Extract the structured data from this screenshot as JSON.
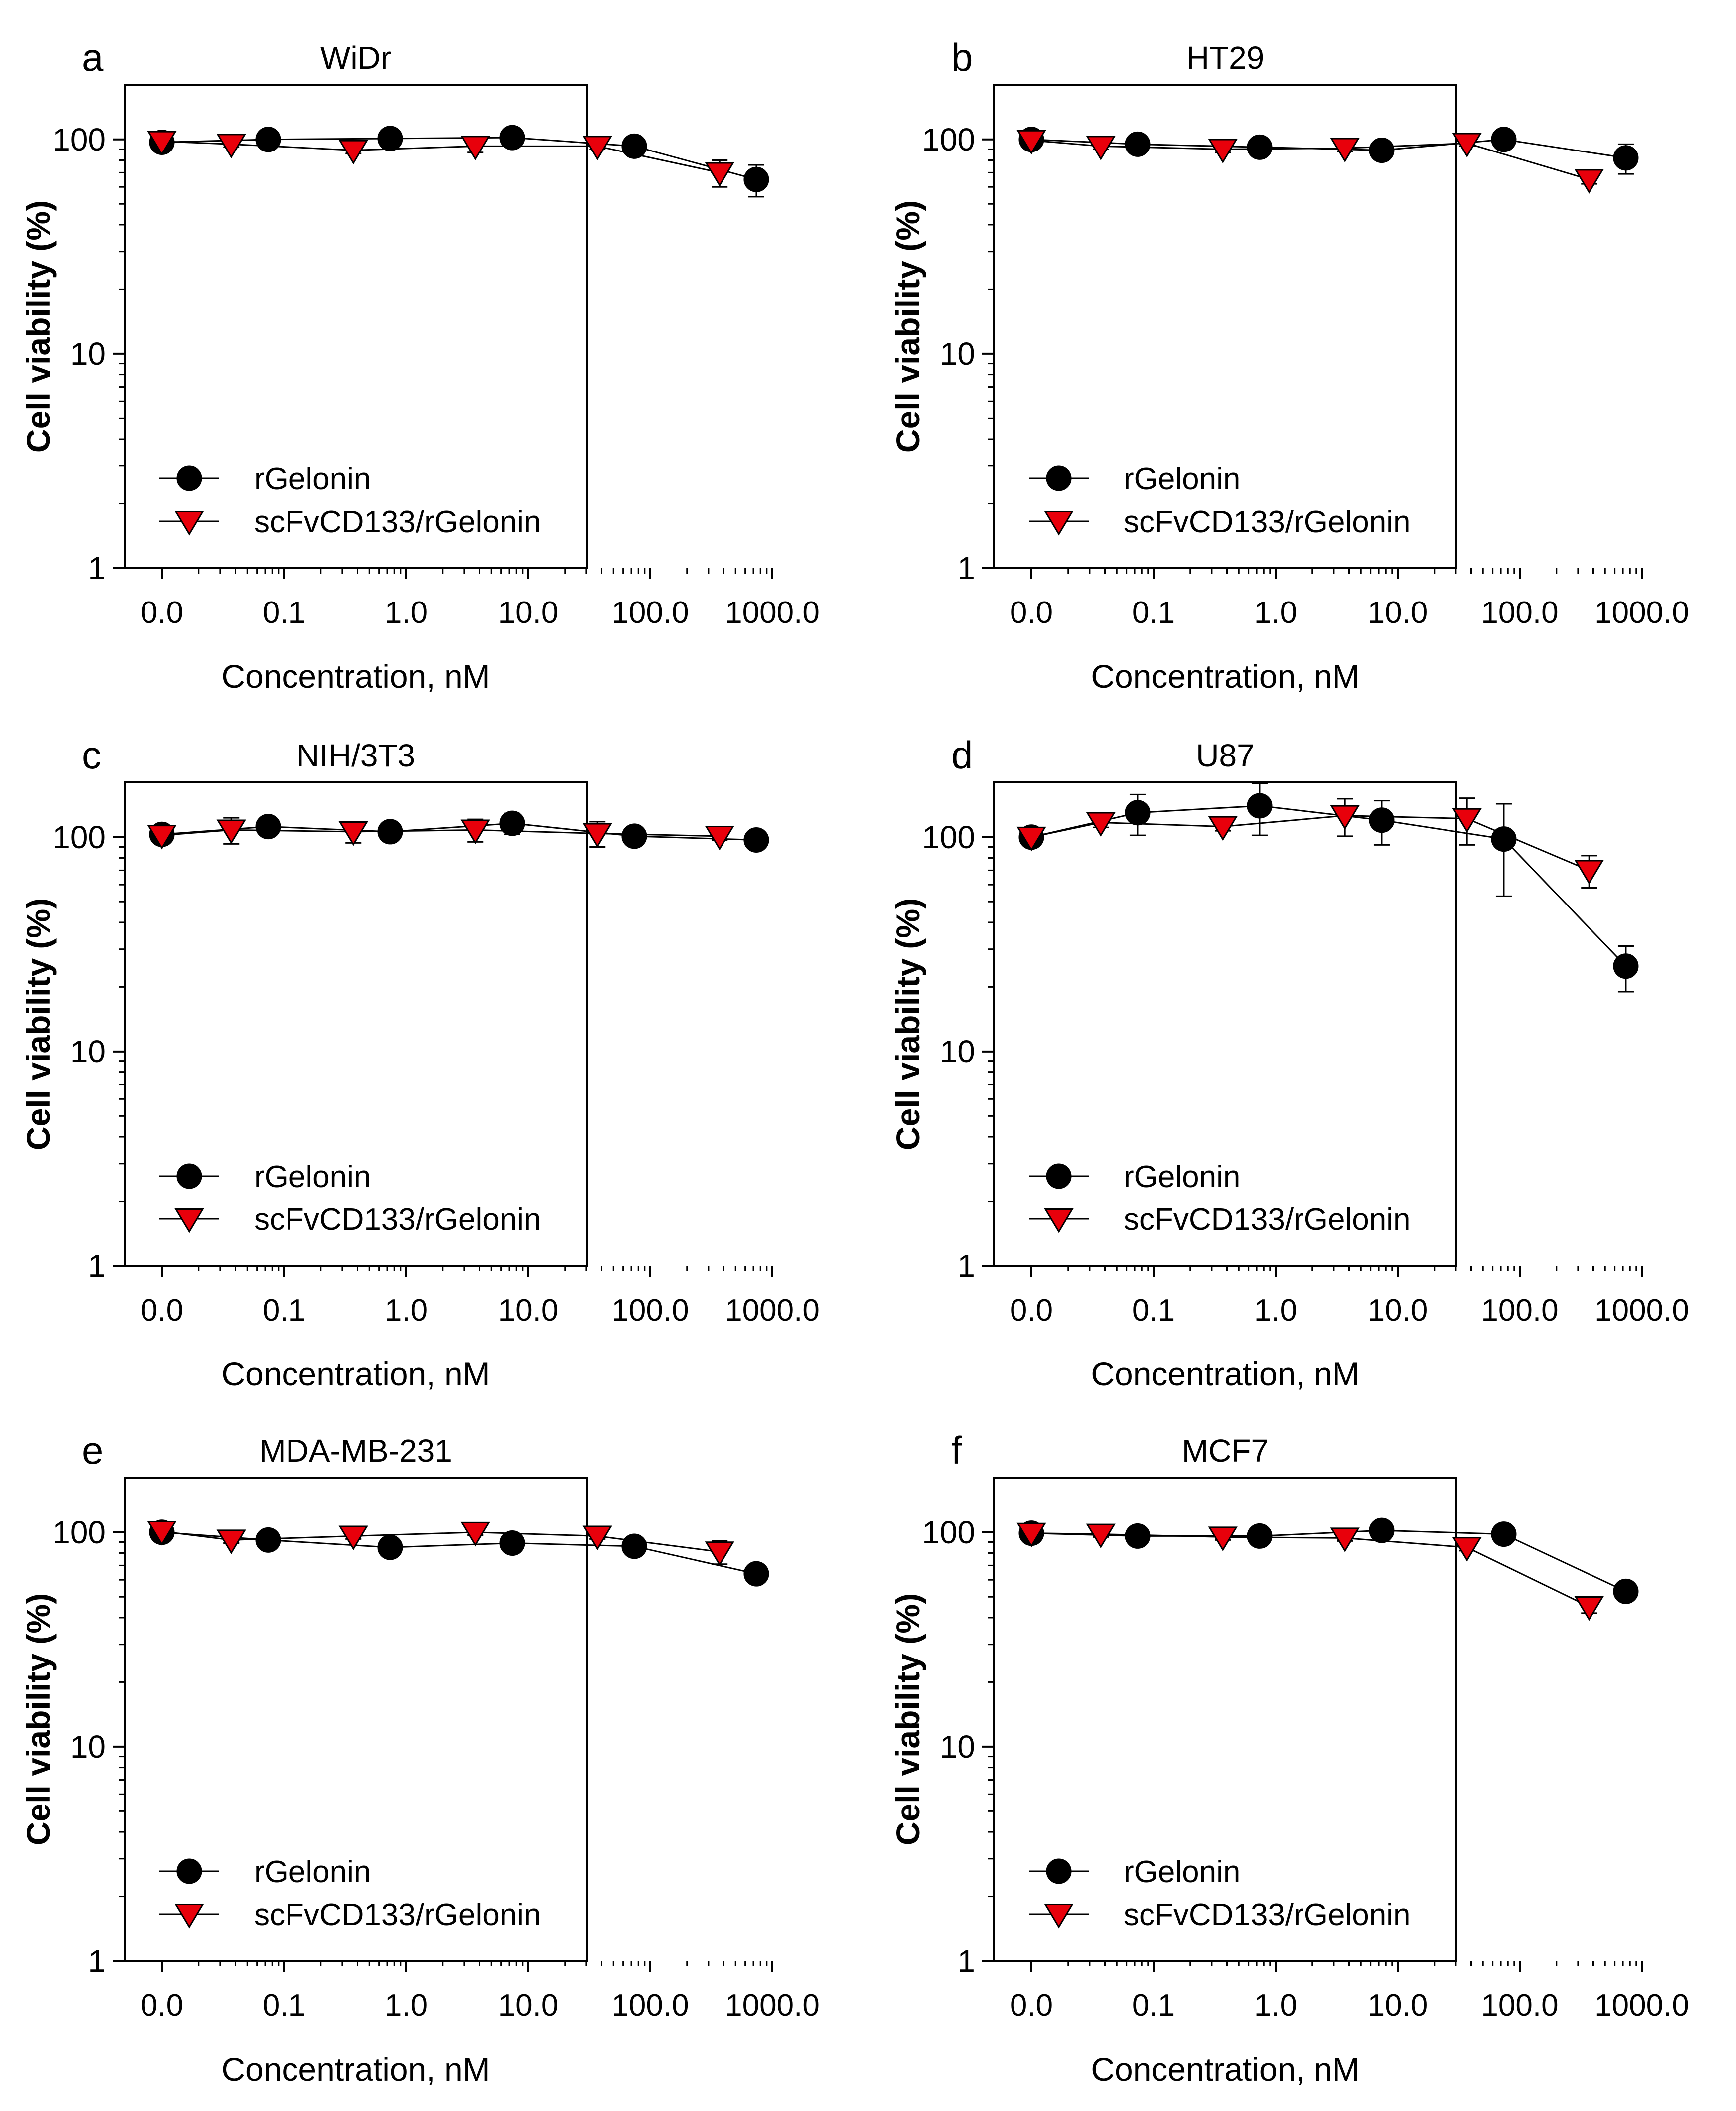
{
  "figure": {
    "series_names": [
      "rGelonin",
      "scFvCD133/rGelonin"
    ],
    "colors": {
      "rGelonin": "#000000",
      "scFvCD133/rGelonin": "#e8000b",
      "axis": "#000000"
    }
  },
  "chart_data": [
    {
      "type": "line",
      "panel_letter": "a",
      "title": "WiDr",
      "xlabel": "Concentration, nM",
      "ylabel": "Cell viability (%)",
      "xscale": "log",
      "yscale": "log",
      "x_tick_labels": [
        "0.0",
        "0.1",
        "1.0",
        "10.0",
        "100.0",
        "1000.0"
      ],
      "y_tick_labels": [
        "1",
        "10",
        "100"
      ],
      "ylim": [
        1,
        180
      ],
      "legend_position": "bottom-left",
      "series": [
        {
          "name": "rGelonin",
          "marker": "circle",
          "x": [
            0.01,
            0.074,
            0.74,
            7.4,
            74,
            740
          ],
          "y": [
            97,
            100,
            101,
            102,
            93,
            65
          ],
          "err": [
            5,
            3,
            3,
            3,
            3,
            11
          ]
        },
        {
          "name": "scFvCD133/rGelonin",
          "marker": "triangle-down",
          "x": [
            0.01,
            0.037,
            0.37,
            3.7,
            37,
            370
          ],
          "y": [
            98,
            95,
            89,
            93,
            93,
            70
          ],
          "err": [
            4,
            3,
            3,
            6,
            3,
            10
          ]
        }
      ]
    },
    {
      "type": "line",
      "panel_letter": "b",
      "title": "HT29",
      "xlabel": "Concentration, nM",
      "ylabel": "Cell viability (%)",
      "xscale": "log",
      "yscale": "log",
      "x_tick_labels": [
        "0.0",
        "0.1",
        "1.0",
        "10.0",
        "100.0",
        "1000.0"
      ],
      "y_tick_labels": [
        "1",
        "10",
        "100"
      ],
      "ylim": [
        1,
        180
      ],
      "legend_position": "bottom-left",
      "series": [
        {
          "name": "rGelonin",
          "marker": "circle",
          "x": [
            0.01,
            0.074,
            0.74,
            7.4,
            74,
            740
          ],
          "y": [
            100,
            95,
            92,
            89,
            100,
            82
          ],
          "err": [
            3,
            3,
            3,
            3,
            3,
            13
          ]
        },
        {
          "name": "scFvCD133/rGelonin",
          "marker": "triangle-down",
          "x": [
            0.01,
            0.037,
            0.37,
            3.7,
            37,
            370
          ],
          "y": [
            99,
            93,
            90,
            91,
            96,
            65
          ],
          "err": [
            3,
            3,
            3,
            3,
            3,
            3
          ]
        }
      ]
    },
    {
      "type": "line",
      "panel_letter": "c",
      "title": "NIH/3T3",
      "xlabel": "Concentration, nM",
      "ylabel": "Cell viability (%)",
      "xscale": "log",
      "yscale": "log",
      "x_tick_labels": [
        "0.0",
        "0.1",
        "1.0",
        "10.0",
        "100.0",
        "1000.0"
      ],
      "y_tick_labels": [
        "1",
        "10",
        "100"
      ],
      "ylim": [
        1,
        180
      ],
      "legend_position": "bottom-left",
      "series": [
        {
          "name": "rGelonin",
          "marker": "circle",
          "x": [
            0.01,
            0.074,
            0.74,
            7.4,
            74,
            740
          ],
          "y": [
            103,
            112,
            106,
            116,
            101,
            97
          ],
          "err": [
            4,
            6,
            4,
            13,
            4,
            3
          ]
        },
        {
          "name": "scFvCD133/rGelonin",
          "marker": "triangle-down",
          "x": [
            0.01,
            0.037,
            0.37,
            3.7,
            37,
            370
          ],
          "y": [
            102,
            108,
            106,
            108,
            104,
            101
          ],
          "err": [
            4,
            15,
            12,
            13,
            14,
            4
          ]
        }
      ]
    },
    {
      "type": "line",
      "panel_letter": "d",
      "title": "U87",
      "xlabel": "Concentration, nM",
      "ylabel": "Cell viability (%)",
      "xscale": "log",
      "yscale": "log",
      "x_tick_labels": [
        "0.0",
        "0.1",
        "1.0",
        "10.0",
        "100.0",
        "1000.0"
      ],
      "y_tick_labels": [
        "1",
        "10",
        "100"
      ],
      "ylim": [
        1,
        180
      ],
      "legend_position": "bottom-left",
      "series": [
        {
          "name": "rGelonin",
          "marker": "circle",
          "x": [
            0.01,
            0.074,
            0.74,
            7.4,
            74,
            740
          ],
          "y": [
            100,
            130,
            140,
            120,
            98,
            25
          ],
          "err": [
            4,
            28,
            38,
            28,
            45,
            6
          ]
        },
        {
          "name": "scFvCD133/rGelonin",
          "marker": "triangle-down",
          "x": [
            0.01,
            0.037,
            0.37,
            3.7,
            37,
            370
          ],
          "y": [
            100,
            117,
            112,
            126,
            122,
            70
          ],
          "err": [
            4,
            6,
            5,
            25,
            30,
            12
          ]
        }
      ]
    },
    {
      "type": "line",
      "panel_letter": "e",
      "title": "MDA-MB-231",
      "xlabel": "Concentration, nM",
      "ylabel": "Cell viability (%)",
      "xscale": "log",
      "yscale": "log",
      "x_tick_labels": [
        "0.0",
        "0.1",
        "1.0",
        "10.0",
        "100.0",
        "1000.0"
      ],
      "y_tick_labels": [
        "1",
        "10",
        "100"
      ],
      "ylim": [
        1,
        180
      ],
      "legend_position": "bottom-left",
      "series": [
        {
          "name": "rGelonin",
          "marker": "circle",
          "x": [
            0.01,
            0.074,
            0.74,
            7.4,
            74,
            740
          ],
          "y": [
            100,
            92,
            85,
            89,
            86,
            64
          ],
          "err": [
            4,
            3,
            3,
            3,
            3,
            3
          ]
        },
        {
          "name": "scFvCD133/rGelonin",
          "marker": "triangle-down",
          "x": [
            0.01,
            0.037,
            0.37,
            3.7,
            37,
            370
          ],
          "y": [
            101,
            92,
            96,
            100,
            96,
            81
          ],
          "err": [
            4,
            3,
            3,
            3,
            3,
            10
          ]
        }
      ]
    },
    {
      "type": "line",
      "panel_letter": "f",
      "title": "MCF7",
      "xlabel": "Concentration, nM",
      "ylabel": "Cell viability (%)",
      "xscale": "log",
      "yscale": "log",
      "x_tick_labels": [
        "0.0",
        "0.1",
        "1.0",
        "10.0",
        "100.0",
        "1000.0"
      ],
      "y_tick_labels": [
        "1",
        "10",
        "100"
      ],
      "ylim": [
        1,
        180
      ],
      "legend_position": "bottom-left",
      "series": [
        {
          "name": "rGelonin",
          "marker": "circle",
          "x": [
            0.01,
            0.074,
            0.74,
            7.4,
            74,
            740
          ],
          "y": [
            99,
            96,
            96,
            102,
            98,
            53
          ],
          "err": [
            4,
            3,
            3,
            3,
            3,
            3
          ]
        },
        {
          "name": "scFvCD133/rGelonin",
          "marker": "triangle-down",
          "x": [
            0.01,
            0.037,
            0.37,
            3.7,
            37,
            370
          ],
          "y": [
            99,
            98,
            95,
            94,
            85,
            45
          ],
          "err": [
            4,
            3,
            3,
            3,
            3,
            3
          ]
        }
      ]
    }
  ]
}
